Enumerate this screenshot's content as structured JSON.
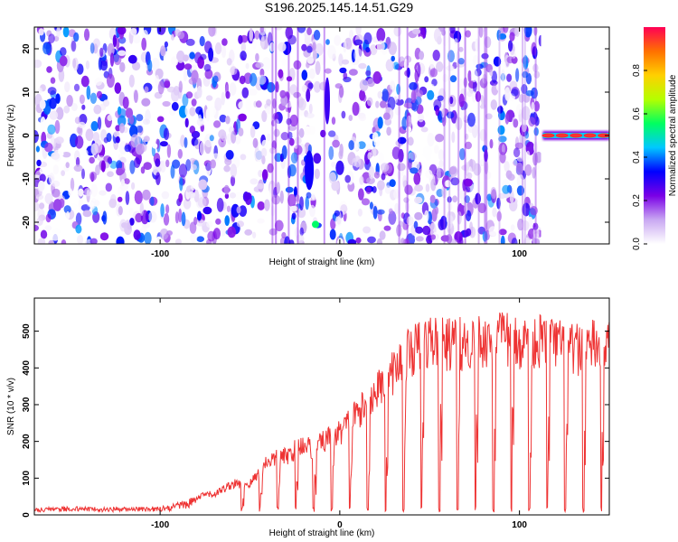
{
  "title": "S196.2025.145.14.51.G29",
  "chart_data": [
    {
      "type": "heatmap",
      "xlabel": "Height of straight line (km)",
      "ylabel": "Frequency (Hz)",
      "xlim": [
        -170,
        150
      ],
      "ylim": [
        -25,
        25
      ],
      "xticks": [
        -100,
        0,
        100
      ],
      "yticks": [
        -20,
        -10,
        0,
        10,
        20
      ],
      "grid": false,
      "colorbar": {
        "label": "Normalized spectral amplitude",
        "range": [
          0.0,
          1.0
        ],
        "ticks": [
          "0.0",
          "0.2",
          "0.4",
          "0.6",
          "0.8"
        ],
        "colors": [
          "#ffffff",
          "#c9a8f2",
          "#7a00e6",
          "#0000ff",
          "#00c8ff",
          "#00ff60",
          "#b4ff00",
          "#ffd000",
          "#ff7000",
          "#ff0055"
        ]
      },
      "features": [
        {
          "name": "",
          "x_range": [
            -170,
            112
          ],
          "y_range": [
            -25,
            25
          ],
          "amplitude": 0.1
        },
        {
          "name": "",
          "x_range": [
            -25,
            -8
          ],
          "y_range": [
            -22,
            -5
          ],
          "amplitude": 0.35
        },
        {
          "name": "",
          "x_range": [
            113,
            150
          ],
          "y_range": [
            -1,
            1
          ],
          "amplitude": 0.9
        }
      ]
    },
    {
      "type": "line",
      "xlabel": "Height of straight line (km)",
      "ylabel": "SNR (10 * v/v)",
      "xlim": [
        -170,
        150
      ],
      "ylim": [
        0,
        590
      ],
      "xticks": [
        -100,
        0,
        100
      ],
      "yticks": [
        0,
        100,
        200,
        300,
        400,
        500
      ],
      "grid": false,
      "series": [
        {
          "name": "",
          "color": "#ee3333",
          "envelope_x": [
            -170,
            -150,
            -130,
            -110,
            -95,
            -85,
            -80,
            -75,
            -70,
            -60,
            -50,
            -40,
            -30,
            -20,
            -15,
            -10,
            -5,
            0,
            5,
            10,
            15,
            20,
            25,
            30,
            35,
            40,
            50,
            60,
            70,
            80,
            90,
            100,
            110,
            120,
            130,
            140,
            150
          ],
          "envelope_y": [
            15,
            18,
            16,
            17,
            20,
            35,
            45,
            60,
            60,
            90,
            90,
            160,
            170,
            210,
            190,
            210,
            230,
            240,
            270,
            300,
            320,
            360,
            390,
            420,
            450,
            480,
            510,
            500,
            500,
            510,
            515,
            505,
            510,
            500,
            480,
            495,
            490
          ],
          "dropout_every_km": 10,
          "dropout_start_km": -55
        }
      ]
    }
  ]
}
